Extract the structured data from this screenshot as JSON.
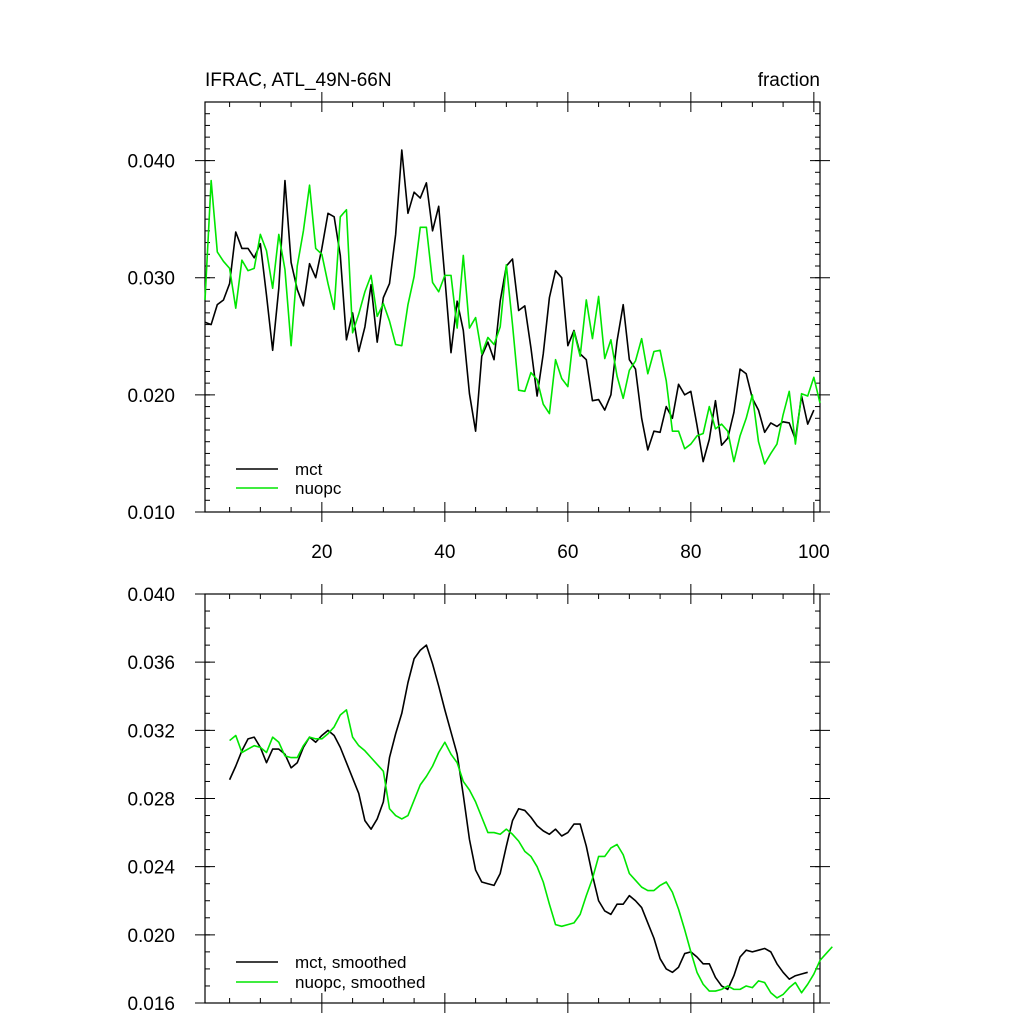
{
  "chart_data": [
    {
      "type": "line",
      "title": "IFRAC, ATL_49N-66N",
      "units": "fraction",
      "xlim": [
        1,
        101
      ],
      "ylim": [
        0.01,
        0.045
      ],
      "x_ticks": [
        20,
        40,
        60,
        80,
        100
      ],
      "y_ticks": [
        0.01,
        0.02,
        0.03,
        0.04
      ],
      "y_tick_labels": [
        "0.010",
        "0.020",
        "0.030",
        "0.040"
      ],
      "x_tick_labels": [
        "20",
        "40",
        "60",
        "80",
        "100"
      ],
      "legend_position": "bottom-left",
      "series": [
        {
          "name": "mct",
          "color": "#000000",
          "x_start": 1,
          "values": [
            0.0262,
            0.026,
            0.0277,
            0.0281,
            0.0295,
            0.0339,
            0.0325,
            0.0325,
            0.0317,
            0.0329,
            0.0285,
            0.0238,
            0.0291,
            0.0383,
            0.0313,
            0.029,
            0.0276,
            0.0312,
            0.03,
            0.0325,
            0.0355,
            0.0352,
            0.0319,
            0.0247,
            0.027,
            0.0237,
            0.0258,
            0.0294,
            0.0245,
            0.0283,
            0.0295,
            0.0337,
            0.0409,
            0.0355,
            0.0373,
            0.0368,
            0.0381,
            0.034,
            0.0361,
            0.03,
            0.0236,
            0.028,
            0.0255,
            0.0201,
            0.0169,
            0.0233,
            0.0245,
            0.023,
            0.028,
            0.031,
            0.0316,
            0.0272,
            0.0276,
            0.024,
            0.0199,
            0.0235,
            0.0283,
            0.0306,
            0.03,
            0.0242,
            0.0255,
            0.0235,
            0.023,
            0.0195,
            0.0196,
            0.0187,
            0.02,
            0.0246,
            0.0277,
            0.023,
            0.0222,
            0.018,
            0.0153,
            0.0169,
            0.0168,
            0.019,
            0.018,
            0.0209,
            0.02,
            0.0203,
            0.0174,
            0.0143,
            0.0162,
            0.0195,
            0.0157,
            0.0163,
            0.0185,
            0.0222,
            0.0218,
            0.0197,
            0.0187,
            0.0168,
            0.0176,
            0.0173,
            0.0177,
            0.0176,
            0.0162,
            0.0199,
            0.0175,
            0.0187
          ]
        },
        {
          "name": "nuopc",
          "color": "#00e600",
          "x_start": 1,
          "values": [
            0.0281,
            0.0383,
            0.0322,
            0.0314,
            0.0308,
            0.0274,
            0.0315,
            0.0306,
            0.0308,
            0.0337,
            0.0323,
            0.0291,
            0.0337,
            0.0307,
            0.0242,
            0.031,
            0.034,
            0.0379,
            0.0325,
            0.032,
            0.0295,
            0.0273,
            0.0352,
            0.0358,
            0.0253,
            0.0269,
            0.0288,
            0.0302,
            0.0267,
            0.0278,
            0.0263,
            0.0243,
            0.0242,
            0.0277,
            0.0301,
            0.0343,
            0.0343,
            0.0296,
            0.0288,
            0.0302,
            0.0302,
            0.0257,
            0.0319,
            0.0257,
            0.0266,
            0.0235,
            0.0249,
            0.0243,
            0.0258,
            0.0311,
            0.026,
            0.0204,
            0.0203,
            0.0219,
            0.0213,
            0.0192,
            0.0184,
            0.023,
            0.0214,
            0.0207,
            0.0254,
            0.0233,
            0.0281,
            0.0248,
            0.0284,
            0.0231,
            0.0247,
            0.0216,
            0.0197,
            0.0221,
            0.0229,
            0.0248,
            0.0218,
            0.0237,
            0.0238,
            0.0212,
            0.0169,
            0.0169,
            0.0154,
            0.0158,
            0.0165,
            0.0167,
            0.019,
            0.0171,
            0.0175,
            0.0169,
            0.0143,
            0.0165,
            0.018,
            0.02,
            0.016,
            0.0141,
            0.015,
            0.0158,
            0.0183,
            0.0203,
            0.0158,
            0.0201,
            0.0199,
            0.0215,
            0.0193
          ]
        }
      ]
    },
    {
      "type": "line",
      "title": "",
      "xlim": [
        1,
        101
      ],
      "ylim": [
        0.016,
        0.04
      ],
      "x_ticks": [
        20,
        40,
        60,
        80,
        100
      ],
      "y_ticks": [
        0.016,
        0.02,
        0.024,
        0.028,
        0.032,
        0.036,
        0.04
      ],
      "y_tick_labels": [
        "0.016",
        "0.020",
        "0.024",
        "0.028",
        "0.032",
        "0.036",
        "0.040"
      ],
      "legend_position": "bottom-left",
      "series": [
        {
          "name": "mct, smoothed",
          "color": "#000000",
          "x_start": 5,
          "values": [
            0.0291,
            0.0299,
            0.0308,
            0.0315,
            0.0316,
            0.031,
            0.0301,
            0.0309,
            0.0309,
            0.0306,
            0.0298,
            0.0301,
            0.031,
            0.0316,
            0.0313,
            0.0317,
            0.032,
            0.0317,
            0.031,
            0.0301,
            0.0292,
            0.0283,
            0.0267,
            0.0262,
            0.0268,
            0.0278,
            0.0304,
            0.0318,
            0.033,
            0.0348,
            0.0362,
            0.0367,
            0.037,
            0.0359,
            0.0346,
            0.0332,
            0.0319,
            0.0306,
            0.0282,
            0.0256,
            0.0238,
            0.0231,
            0.023,
            0.0229,
            0.0236,
            0.0252,
            0.0267,
            0.0274,
            0.0273,
            0.0269,
            0.0264,
            0.0261,
            0.0259,
            0.0262,
            0.0258,
            0.026,
            0.0265,
            0.0265,
            0.0252,
            0.0235,
            0.022,
            0.0214,
            0.0212,
            0.0218,
            0.0218,
            0.0223,
            0.022,
            0.0216,
            0.0207,
            0.0198,
            0.0186,
            0.018,
            0.0178,
            0.0181,
            0.0189,
            0.019,
            0.0187,
            0.0183,
            0.0183,
            0.0175,
            0.017,
            0.0168,
            0.0176,
            0.0187,
            0.0191,
            0.019,
            0.0191,
            0.0192,
            0.019,
            0.0183,
            0.0178,
            0.0174,
            0.0176,
            0.0177,
            0.0178
          ]
        },
        {
          "name": "nuopc, smoothed",
          "color": "#00e600",
          "x_start": 5,
          "values": [
            0.0314,
            0.0317,
            0.0307,
            0.0309,
            0.0311,
            0.031,
            0.0307,
            0.0316,
            0.0313,
            0.0305,
            0.0304,
            0.0304,
            0.0311,
            0.0316,
            0.0315,
            0.0315,
            0.0318,
            0.0322,
            0.0329,
            0.0332,
            0.0316,
            0.0311,
            0.0308,
            0.0304,
            0.03,
            0.0296,
            0.0274,
            0.027,
            0.0268,
            0.027,
            0.0279,
            0.0288,
            0.0293,
            0.0299,
            0.0307,
            0.0313,
            0.0306,
            0.0301,
            0.029,
            0.0285,
            0.0278,
            0.0269,
            0.026,
            0.026,
            0.0259,
            0.0262,
            0.0259,
            0.0255,
            0.0249,
            0.0246,
            0.024,
            0.0231,
            0.0218,
            0.0206,
            0.0205,
            0.0206,
            0.0207,
            0.0212,
            0.0223,
            0.0233,
            0.0246,
            0.0246,
            0.0251,
            0.0253,
            0.0247,
            0.0236,
            0.0232,
            0.0228,
            0.0226,
            0.0226,
            0.0229,
            0.0231,
            0.0225,
            0.0215,
            0.0203,
            0.019,
            0.0178,
            0.0171,
            0.0167,
            0.0167,
            0.0168,
            0.017,
            0.0168,
            0.0168,
            0.017,
            0.0169,
            0.0173,
            0.0172,
            0.0166,
            0.0163,
            0.0165,
            0.0169,
            0.0172,
            0.0166,
            0.0171,
            0.0177,
            0.0185,
            0.0189,
            0.0193
          ]
        }
      ]
    }
  ]
}
